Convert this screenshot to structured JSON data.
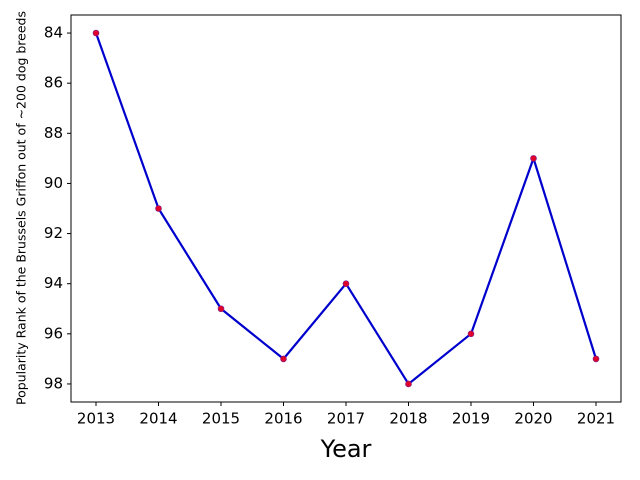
{
  "chart_data": {
    "type": "line",
    "x": [
      2013,
      2014,
      2015,
      2016,
      2017,
      2018,
      2019,
      2020,
      2021
    ],
    "values": [
      84,
      91,
      95,
      97,
      94,
      98,
      96,
      89,
      97
    ],
    "color": "#0000cd",
    "marker_color": "#e0002a",
    "xlabel": "Year",
    "ylabel": "Popularity Rank of the Brussels Griffon out of ~200 dog breeds",
    "xlim": [
      2012.6,
      2021.4
    ],
    "xticks": [
      2013,
      2014,
      2015,
      2016,
      2017,
      2018,
      2019,
      2020,
      2021
    ],
    "ylim": [
      98.72,
      83.28
    ],
    "yticks": [
      84,
      86,
      88,
      90,
      92,
      94,
      96,
      98
    ],
    "grid": false
  }
}
